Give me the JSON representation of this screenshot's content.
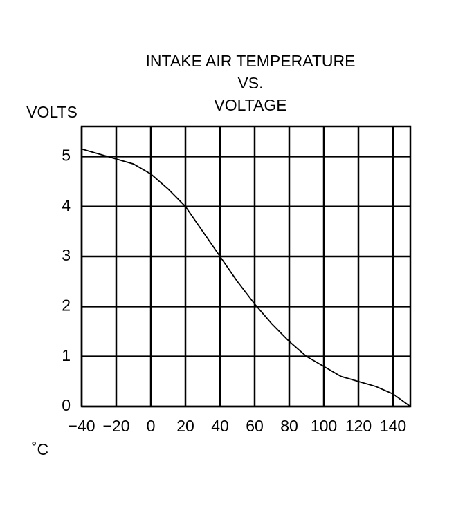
{
  "chart_data": {
    "type": "line",
    "title": [
      "INTAKE AIR TEMPERATURE",
      "VS.",
      "VOLTAGE"
    ],
    "y_label": "VOLTS",
    "x_label": "˚C",
    "x": [
      -40,
      -30,
      -20,
      -10,
      0,
      10,
      20,
      30,
      40,
      50,
      60,
      70,
      80,
      90,
      100,
      110,
      120,
      130,
      140,
      150
    ],
    "series": [
      {
        "name": "Voltage",
        "color": "#000000",
        "values": [
          5.15,
          5.05,
          4.95,
          4.85,
          4.65,
          4.35,
          4.0,
          3.5,
          3.0,
          2.5,
          2.05,
          1.65,
          1.3,
          1.0,
          0.8,
          0.6,
          0.5,
          0.4,
          0.25,
          0.0
        ]
      }
    ],
    "xlim": [
      -40,
      150
    ],
    "xticks": [
      {
        "value": -40,
        "label": "−40"
      },
      {
        "value": -20,
        "label": "−20"
      },
      0,
      20,
      40,
      60,
      80,
      100,
      120,
      140
    ],
    "ylim": [
      0,
      5.6
    ],
    "yticks": [
      0,
      1,
      2,
      3,
      4,
      5
    ],
    "grid": true
  }
}
